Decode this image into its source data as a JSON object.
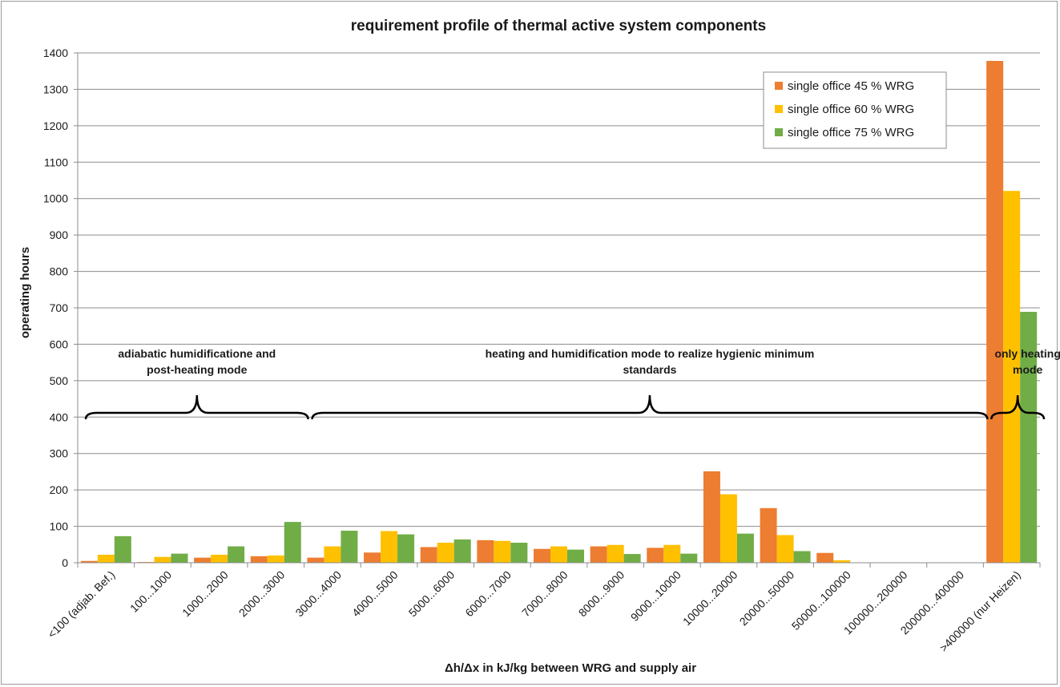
{
  "chart_data": {
    "type": "bar",
    "title": "requirement profile of thermal active system components",
    "xlabel": "Δh/Δx in kJ/kg between WRG and supply air",
    "ylabel": "operating hours",
    "ylim": [
      0,
      1400
    ],
    "yticks": [
      0,
      100,
      200,
      300,
      400,
      500,
      600,
      700,
      800,
      900,
      1000,
      1100,
      1200,
      1300,
      1400
    ],
    "grid": true,
    "legend_position": "top-right",
    "categories": [
      "<100 (adjab. Bef.)",
      "100...1000",
      "1000...2000",
      "2000...3000",
      "3000...4000",
      "4000...5000",
      "5000...6000",
      "6000...7000",
      "7000...8000",
      "8000...9000",
      "9000...10000",
      "10000...20000",
      "20000...50000",
      "50000...100000",
      "100000...200000",
      "200000...400000",
      ">400000 (nur Heizen)"
    ],
    "series": [
      {
        "name": "single office   45 % WRG",
        "color": "#ED7D31",
        "values": [
          5,
          2,
          14,
          18,
          14,
          28,
          43,
          62,
          38,
          45,
          41,
          251,
          150,
          27,
          0,
          0,
          1378
        ]
      },
      {
        "name": "single office   60 % WRG",
        "color": "#FFC000",
        "values": [
          22,
          16,
          22,
          20,
          45,
          87,
          55,
          60,
          45,
          49,
          49,
          188,
          76,
          7,
          0,
          0,
          1021
        ]
      },
      {
        "name": "single office   75 % WRG",
        "color": "#70AD47",
        "values": [
          73,
          25,
          45,
          112,
          88,
          78,
          64,
          55,
          36,
          24,
          25,
          80,
          32,
          0,
          0,
          0,
          689
        ]
      }
    ],
    "annotations": [
      {
        "lines": [
          "adiabatic humidificatione and",
          "post-heating mode"
        ],
        "from_category": 0,
        "to_category": 3
      },
      {
        "lines": [
          "heating and humidification mode to realize hygienic minimum",
          "standards"
        ],
        "from_category": 4,
        "to_category": 15
      },
      {
        "lines": [
          "only heating",
          "mode"
        ],
        "from_category": 16,
        "to_category": 16
      }
    ]
  }
}
